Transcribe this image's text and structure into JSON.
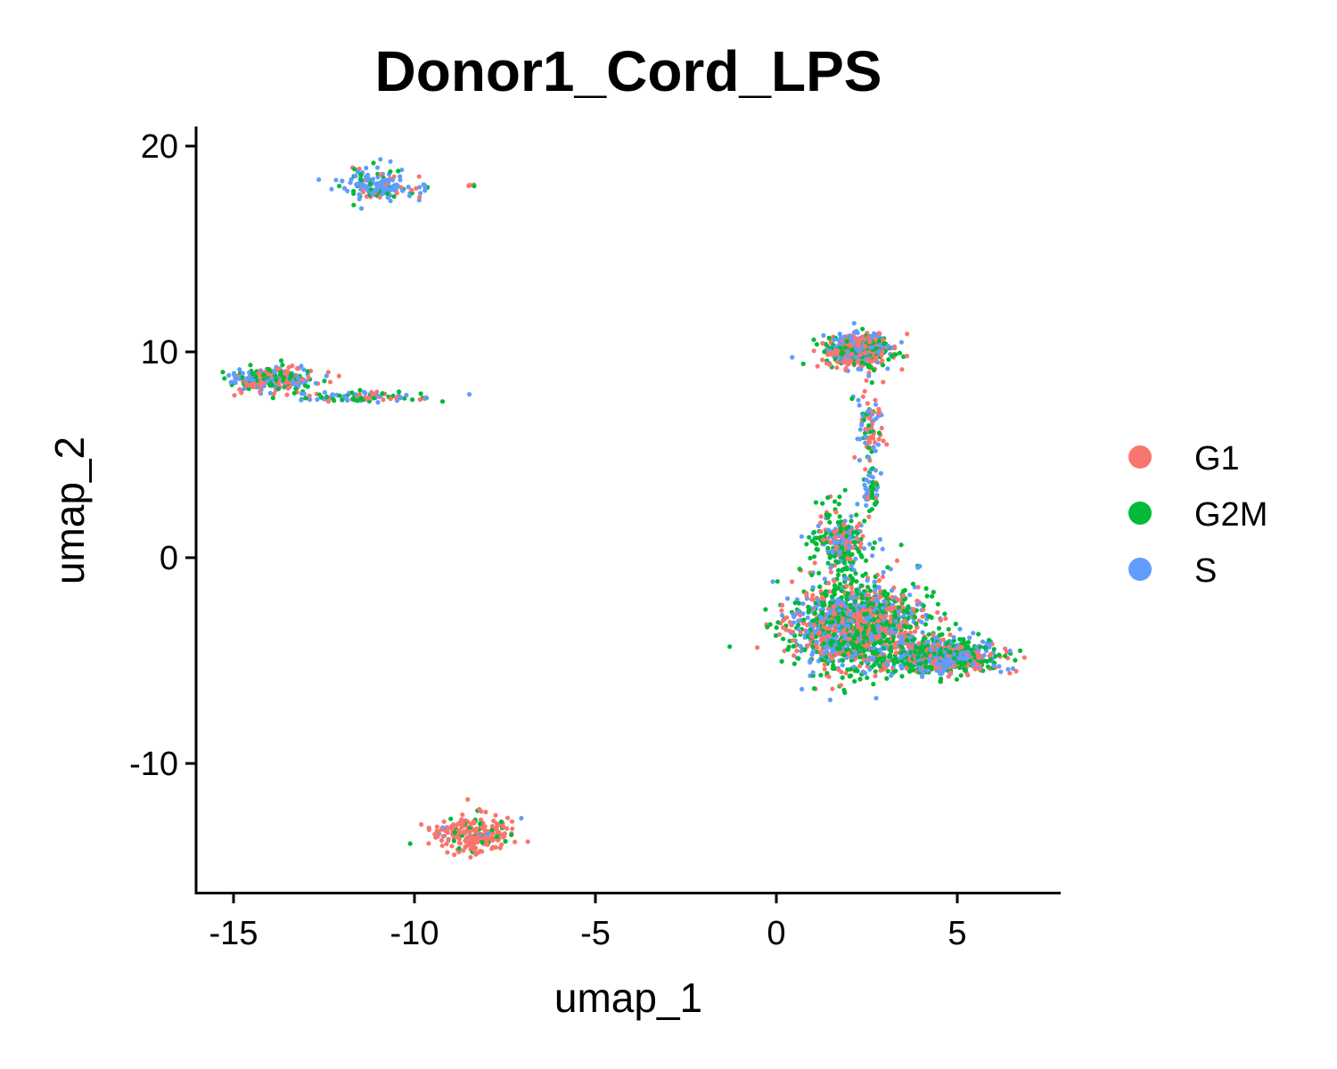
{
  "chart_data": {
    "type": "scatter",
    "title": "Donor1_Cord_LPS",
    "xlabel": "umap_1",
    "ylabel": "umap_2",
    "xlim": [
      -16,
      8
    ],
    "ylim": [
      -16.5,
      21
    ],
    "x_ticks": [
      -15,
      -10,
      -5,
      0,
      5
    ],
    "x_tick_labels": [
      "-15",
      "-10",
      "-5",
      "0",
      "5"
    ],
    "y_ticks": [
      -10,
      0,
      10,
      20
    ],
    "y_tick_labels": [
      "-10",
      "0",
      "10",
      "20"
    ],
    "grid": false,
    "legend_position": "right",
    "series": [
      {
        "name": "G1",
        "color": "#F8766D"
      },
      {
        "name": "G2M",
        "color": "#00BA38"
      },
      {
        "name": "S",
        "color": "#619CFF"
      }
    ],
    "clusters": [
      {
        "description": "upper-left loop",
        "center": [
          -11.2,
          18.2
        ],
        "spread": [
          0.55,
          0.55
        ],
        "count": 130,
        "mix": [
          0.12,
          0.18,
          0.7
        ]
      },
      {
        "description": "upper-left tail",
        "center": [
          -10.4,
          17.9
        ],
        "spread": [
          0.6,
          0.25
        ],
        "count": 50,
        "mix": [
          0.1,
          0.2,
          0.7
        ]
      },
      {
        "description": "tiny dots",
        "center": [
          -8.4,
          18.1
        ],
        "spread": [
          0.1,
          0.05
        ],
        "count": 5,
        "mix": [
          0.6,
          0.4,
          0.0
        ]
      },
      {
        "description": "left elongated head",
        "center": [
          -13.9,
          8.7
        ],
        "spread": [
          0.8,
          0.4
        ],
        "count": 260,
        "mix": [
          0.38,
          0.32,
          0.3
        ]
      },
      {
        "description": "left elongated tail",
        "center": [
          -11.3,
          7.8
        ],
        "spread": [
          1.3,
          0.18
        ],
        "count": 110,
        "mix": [
          0.3,
          0.35,
          0.35
        ]
      },
      {
        "description": "bottom cluster",
        "center": [
          -8.4,
          -13.5
        ],
        "spread": [
          0.7,
          0.6
        ],
        "count": 240,
        "mix": [
          0.88,
          0.1,
          0.02
        ]
      },
      {
        "description": "upper-right cluster",
        "center": [
          2.3,
          10.1
        ],
        "spread": [
          0.6,
          0.55
        ],
        "count": 520,
        "mix": [
          0.42,
          0.32,
          0.26
        ]
      },
      {
        "description": "neck",
        "center": [
          2.6,
          6.3
        ],
        "spread": [
          0.25,
          1.2
        ],
        "count": 90,
        "mix": [
          0.5,
          0.2,
          0.3
        ]
      },
      {
        "description": "neck lower",
        "center": [
          2.6,
          3.2
        ],
        "spread": [
          0.15,
          0.8
        ],
        "count": 50,
        "mix": [
          0.2,
          0.4,
          0.4
        ]
      },
      {
        "description": "large bottom-right body",
        "center": [
          2.2,
          -3.3
        ],
        "spread": [
          1.2,
          1.4
        ],
        "count": 1500,
        "mix": [
          0.33,
          0.4,
          0.27
        ]
      },
      {
        "description": "large bottom-right wing",
        "center": [
          4.6,
          -4.8
        ],
        "spread": [
          1.0,
          0.55
        ],
        "count": 700,
        "mix": [
          0.25,
          0.35,
          0.4
        ]
      },
      {
        "description": "large top part",
        "center": [
          1.8,
          0.8
        ],
        "spread": [
          0.5,
          1.0
        ],
        "count": 260,
        "mix": [
          0.25,
          0.45,
          0.3
        ]
      }
    ]
  }
}
